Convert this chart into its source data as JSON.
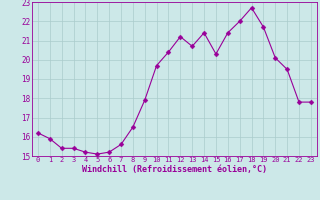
{
  "x": [
    0,
    1,
    2,
    3,
    4,
    5,
    6,
    7,
    8,
    9,
    10,
    11,
    12,
    13,
    14,
    15,
    16,
    17,
    18,
    19,
    20,
    21,
    22,
    23
  ],
  "y": [
    16.2,
    15.9,
    15.4,
    15.4,
    15.2,
    15.1,
    15.2,
    15.6,
    16.5,
    17.9,
    19.7,
    20.4,
    21.2,
    20.7,
    21.4,
    20.3,
    21.4,
    22.0,
    22.7,
    21.7,
    20.1,
    19.5,
    17.8,
    17.8
  ],
  "line_color": "#990099",
  "marker": "D",
  "marker_size": 2.5,
  "bg_color": "#cce8e8",
  "grid_color": "#aacccc",
  "xlabel": "Windchill (Refroidissement éolien,°C)",
  "xlabel_color": "#990099",
  "tick_color": "#990099",
  "ylim": [
    15,
    23
  ],
  "yticks": [
    15,
    16,
    17,
    18,
    19,
    20,
    21,
    22,
    23
  ],
  "xticks": [
    0,
    1,
    2,
    3,
    4,
    5,
    6,
    7,
    8,
    9,
    10,
    11,
    12,
    13,
    14,
    15,
    16,
    17,
    18,
    19,
    20,
    21,
    22,
    23
  ],
  "spine_color": "#990099",
  "figsize": [
    3.2,
    2.0
  ],
  "dpi": 100
}
